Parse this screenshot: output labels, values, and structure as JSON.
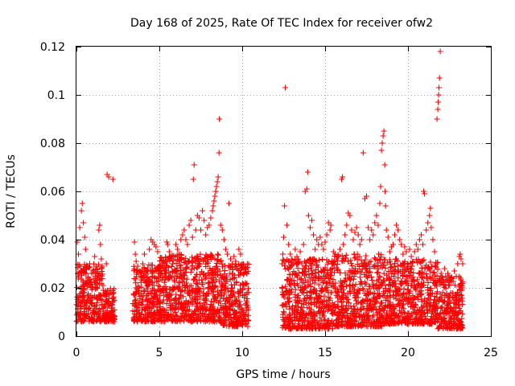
{
  "chart_data": {
    "type": "scatter",
    "title": "Day 168 of 2025, Rate Of TEC Index for receiver ofw2",
    "xlabel": "GPS time / hours",
    "ylabel": "ROTI / TECUs",
    "xlim": [
      0,
      25
    ],
    "ylim": [
      0,
      0.12
    ],
    "x_ticks": [
      0,
      5,
      10,
      15,
      20,
      25
    ],
    "x_tick_labels": [
      "0",
      "5",
      "10",
      "15",
      "20",
      "25"
    ],
    "y_ticks": [
      0,
      0.02,
      0.04,
      0.06,
      0.08,
      0.1,
      0.12
    ],
    "y_tick_labels": [
      "0",
      "0.02",
      "0.04",
      "0.06",
      "0.08",
      "0.1",
      "0.12"
    ],
    "grid": true,
    "marker": "+",
    "color": "#ff0000",
    "series": [
      {
        "name": "ROTI",
        "points": [
          [
            0.05,
            0.039
          ],
          [
            0.12,
            0.034
          ],
          [
            0.2,
            0.045
          ],
          [
            0.3,
            0.052
          ],
          [
            0.35,
            0.055
          ],
          [
            0.42,
            0.047
          ],
          [
            0.5,
            0.041
          ],
          [
            0.55,
            0.036
          ],
          [
            0.6,
            0.028
          ],
          [
            0.7,
            0.024
          ],
          [
            0.8,
            0.03
          ],
          [
            0.9,
            0.022
          ],
          [
            1.0,
            0.027
          ],
          [
            1.1,
            0.033
          ],
          [
            1.2,
            0.029
          ],
          [
            1.3,
            0.025
          ],
          [
            1.35,
            0.044
          ],
          [
            1.4,
            0.046
          ],
          [
            1.45,
            0.038
          ],
          [
            1.5,
            0.032
          ],
          [
            1.6,
            0.021
          ],
          [
            1.8,
            0.03
          ],
          [
            1.85,
            0.067
          ],
          [
            1.95,
            0.066
          ],
          [
            2.0,
            0.018
          ],
          [
            2.15,
            0.012
          ],
          [
            2.2,
            0.065
          ],
          [
            2.3,
            0.008
          ],
          [
            3.5,
            0.039
          ],
          [
            3.55,
            0.034
          ],
          [
            3.6,
            0.031
          ],
          [
            3.7,
            0.029
          ],
          [
            3.8,
            0.027
          ],
          [
            3.9,
            0.025
          ],
          [
            4.0,
            0.03
          ],
          [
            4.1,
            0.034
          ],
          [
            4.2,
            0.022
          ],
          [
            4.3,
            0.028
          ],
          [
            4.4,
            0.036
          ],
          [
            4.5,
            0.04
          ],
          [
            4.6,
            0.039
          ],
          [
            4.7,
            0.038
          ],
          [
            4.8,
            0.037
          ],
          [
            4.9,
            0.035
          ],
          [
            5.0,
            0.026
          ],
          [
            5.2,
            0.03
          ],
          [
            5.3,
            0.028
          ],
          [
            5.45,
            0.039
          ],
          [
            5.5,
            0.038
          ],
          [
            5.6,
            0.035
          ],
          [
            5.7,
            0.032
          ],
          [
            5.8,
            0.03
          ],
          [
            5.95,
            0.033
          ],
          [
            6.0,
            0.038
          ],
          [
            6.1,
            0.036
          ],
          [
            6.2,
            0.034
          ],
          [
            6.3,
            0.04
          ],
          [
            6.4,
            0.042
          ],
          [
            6.5,
            0.044
          ],
          [
            6.6,
            0.04
          ],
          [
            6.7,
            0.038
          ],
          [
            6.8,
            0.046
          ],
          [
            6.9,
            0.048
          ],
          [
            7.0,
            0.041
          ],
          [
            7.05,
            0.065
          ],
          [
            7.1,
            0.071
          ],
          [
            7.2,
            0.044
          ],
          [
            7.3,
            0.05
          ],
          [
            7.4,
            0.049
          ],
          [
            7.5,
            0.044
          ],
          [
            7.6,
            0.052
          ],
          [
            7.7,
            0.048
          ],
          [
            7.8,
            0.042
          ],
          [
            7.9,
            0.045
          ],
          [
            8.0,
            0.046
          ],
          [
            8.1,
            0.049
          ],
          [
            8.2,
            0.052
          ],
          [
            8.25,
            0.054
          ],
          [
            8.3,
            0.056
          ],
          [
            8.35,
            0.058
          ],
          [
            8.4,
            0.06
          ],
          [
            8.45,
            0.062
          ],
          [
            8.5,
            0.064
          ],
          [
            8.55,
            0.066
          ],
          [
            8.6,
            0.076
          ],
          [
            8.62,
            0.09
          ],
          [
            8.7,
            0.046
          ],
          [
            8.8,
            0.044
          ],
          [
            8.9,
            0.04
          ],
          [
            9.0,
            0.036
          ],
          [
            9.1,
            0.034
          ],
          [
            9.2,
            0.055
          ],
          [
            9.3,
            0.032
          ],
          [
            9.4,
            0.03
          ],
          [
            9.5,
            0.033
          ],
          [
            9.6,
            0.031
          ],
          [
            9.7,
            0.028
          ],
          [
            9.8,
            0.036
          ],
          [
            9.9,
            0.034
          ],
          [
            10.0,
            0.03
          ],
          [
            10.1,
            0.026
          ],
          [
            10.2,
            0.022
          ],
          [
            10.3,
            0.018
          ],
          [
            10.35,
            0.012
          ],
          [
            12.4,
            0.03
          ],
          [
            12.45,
            0.034
          ],
          [
            12.5,
            0.041
          ],
          [
            12.55,
            0.054
          ],
          [
            12.6,
            0.103
          ],
          [
            12.7,
            0.046
          ],
          [
            12.8,
            0.038
          ],
          [
            12.9,
            0.034
          ],
          [
            13.0,
            0.032
          ],
          [
            13.1,
            0.03
          ],
          [
            13.2,
            0.036
          ],
          [
            13.3,
            0.033
          ],
          [
            13.4,
            0.031
          ],
          [
            13.5,
            0.035
          ],
          [
            13.6,
            0.03
          ],
          [
            13.7,
            0.038
          ],
          [
            13.8,
            0.06
          ],
          [
            13.9,
            0.061
          ],
          [
            13.95,
            0.068
          ],
          [
            14.0,
            0.05
          ],
          [
            14.1,
            0.045
          ],
          [
            14.2,
            0.048
          ],
          [
            14.3,
            0.042
          ],
          [
            14.4,
            0.036
          ],
          [
            14.5,
            0.04
          ],
          [
            14.6,
            0.038
          ],
          [
            14.7,
            0.041
          ],
          [
            14.8,
            0.038
          ],
          [
            14.9,
            0.036
          ],
          [
            15.0,
            0.039
          ],
          [
            15.1,
            0.042
          ],
          [
            15.2,
            0.047
          ],
          [
            15.3,
            0.044
          ],
          [
            15.35,
            0.046
          ],
          [
            15.4,
            0.03
          ],
          [
            15.5,
            0.035
          ],
          [
            15.6,
            0.034
          ],
          [
            15.7,
            0.032
          ],
          [
            15.8,
            0.033
          ],
          [
            15.9,
            0.036
          ],
          [
            16.0,
            0.065
          ],
          [
            16.05,
            0.066
          ],
          [
            16.1,
            0.038
          ],
          [
            16.2,
            0.042
          ],
          [
            16.3,
            0.046
          ],
          [
            16.4,
            0.051
          ],
          [
            16.5,
            0.05
          ],
          [
            16.6,
            0.044
          ],
          [
            16.7,
            0.04
          ],
          [
            16.8,
            0.043
          ],
          [
            16.9,
            0.045
          ],
          [
            17.0,
            0.042
          ],
          [
            17.1,
            0.038
          ],
          [
            17.2,
            0.04
          ],
          [
            17.3,
            0.076
          ],
          [
            17.4,
            0.057
          ],
          [
            17.5,
            0.058
          ],
          [
            17.6,
            0.045
          ],
          [
            17.7,
            0.04
          ],
          [
            17.8,
            0.044
          ],
          [
            17.9,
            0.042
          ],
          [
            18.0,
            0.047
          ],
          [
            18.1,
            0.05
          ],
          [
            18.2,
            0.046
          ],
          [
            18.3,
            0.055
          ],
          [
            18.35,
            0.062
          ],
          [
            18.4,
            0.077
          ],
          [
            18.45,
            0.08
          ],
          [
            18.5,
            0.083
          ],
          [
            18.55,
            0.085
          ],
          [
            18.6,
            0.071
          ],
          [
            18.62,
            0.06
          ],
          [
            18.65,
            0.054
          ],
          [
            18.7,
            0.044
          ],
          [
            18.8,
            0.041
          ],
          [
            18.9,
            0.035
          ],
          [
            19.0,
            0.037
          ],
          [
            19.1,
            0.038
          ],
          [
            19.2,
            0.042
          ],
          [
            19.3,
            0.046
          ],
          [
            19.4,
            0.044
          ],
          [
            19.5,
            0.04
          ],
          [
            19.6,
            0.038
          ],
          [
            19.7,
            0.034
          ],
          [
            19.8,
            0.037
          ],
          [
            19.9,
            0.035
          ],
          [
            20.0,
            0.03
          ],
          [
            20.1,
            0.036
          ],
          [
            20.2,
            0.033
          ],
          [
            20.3,
            0.031
          ],
          [
            20.4,
            0.035
          ],
          [
            20.5,
            0.038
          ],
          [
            20.6,
            0.036
          ],
          [
            20.7,
            0.04
          ],
          [
            20.8,
            0.042
          ],
          [
            20.9,
            0.038
          ],
          [
            20.95,
            0.06
          ],
          [
            21.0,
            0.059
          ],
          [
            21.1,
            0.044
          ],
          [
            21.2,
            0.047
          ],
          [
            21.3,
            0.05
          ],
          [
            21.35,
            0.053
          ],
          [
            21.4,
            0.045
          ],
          [
            21.5,
            0.04
          ],
          [
            21.6,
            0.035
          ],
          [
            21.7,
            0.03
          ],
          [
            21.75,
            0.09
          ],
          [
            21.8,
            0.094
          ],
          [
            21.82,
            0.097
          ],
          [
            21.85,
            0.1
          ],
          [
            21.87,
            0.103
          ],
          [
            21.9,
            0.107
          ],
          [
            21.95,
            0.118
          ],
          [
            22.0,
            0.026
          ],
          [
            22.2,
            0.028
          ],
          [
            22.4,
            0.026
          ],
          [
            22.6,
            0.024
          ],
          [
            22.8,
            0.027
          ],
          [
            23.0,
            0.03
          ],
          [
            23.1,
            0.033
          ],
          [
            23.15,
            0.034
          ],
          [
            23.2,
            0.032
          ],
          [
            23.3,
            0.03
          ]
        ]
      }
    ],
    "dense_bands": [
      {
        "x_start": 0.0,
        "x_end": 1.6,
        "y_low": 0.006,
        "y_high": 0.03
      },
      {
        "x_start": 1.6,
        "x_end": 2.3,
        "y_low": 0.006,
        "y_high": 0.02
      },
      {
        "x_start": 3.4,
        "x_end": 5.0,
        "y_low": 0.006,
        "y_high": 0.03
      },
      {
        "x_start": 5.0,
        "x_end": 8.8,
        "y_low": 0.006,
        "y_high": 0.034
      },
      {
        "x_start": 8.8,
        "x_end": 10.4,
        "y_low": 0.004,
        "y_high": 0.03
      },
      {
        "x_start": 12.4,
        "x_end": 15.5,
        "y_low": 0.003,
        "y_high": 0.032
      },
      {
        "x_start": 15.5,
        "x_end": 18.5,
        "y_low": 0.004,
        "y_high": 0.034
      },
      {
        "x_start": 18.5,
        "x_end": 21.8,
        "y_low": 0.005,
        "y_high": 0.032
      },
      {
        "x_start": 21.8,
        "x_end": 23.3,
        "y_low": 0.003,
        "y_high": 0.025
      }
    ]
  }
}
